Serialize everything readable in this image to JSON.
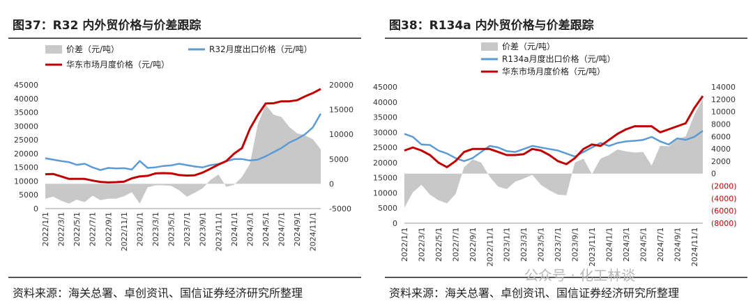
{
  "charts": [
    {
      "title": "图37：R32 内外贸价格与价差跟踪",
      "source": "资料来源：海关总署、卓创资讯、国信证券经济研究所整理"
    },
    {
      "title": "图38：R134a 内外贸价格与价差跟踪",
      "source": "资料来源：海关总署、卓创资讯、国信证券经济研究所整理"
    }
  ],
  "watermark": "公众号 · 化工林谈",
  "chart_data": [
    {
      "type": "line",
      "x": [
        "2022/1/1",
        "2022/2/1",
        "2022/3/1",
        "2022/4/1",
        "2022/5/1",
        "2022/6/1",
        "2022/7/1",
        "2022/8/1",
        "2022/9/1",
        "2022/10/1",
        "2022/11/1",
        "2022/12/1",
        "2023/1/1",
        "2023/2/1",
        "2023/3/1",
        "2023/4/1",
        "2023/5/1",
        "2023/6/1",
        "2023/7/1",
        "2023/8/1",
        "2023/9/1",
        "2023/10/1",
        "2023/11/1",
        "2023/12/1",
        "2024/1/1",
        "2024/2/1",
        "2024/3/1",
        "2024/4/1",
        "2024/5/1",
        "2024/6/1",
        "2024/7/1",
        "2024/8/1",
        "2024/9/1",
        "2024/10/1",
        "2024/11/1",
        "2024/12/1"
      ],
      "xticks": [
        "2022/1/1",
        "2022/3/1",
        "2022/5/1",
        "2022/7/1",
        "2022/9/1",
        "2022/11/1",
        "2023/1/1",
        "2023/3/1",
        "2023/5/1",
        "2023/7/1",
        "2023/9/1",
        "2023/11/1",
        "2024/1/1",
        "2024/3/1",
        "2024/5/1",
        "2024/7/1",
        "2024/9/1",
        "2024/11/1"
      ],
      "ylim_left": [
        0,
        45000
      ],
      "yticks_left": [
        0,
        5000,
        10000,
        15000,
        20000,
        25000,
        30000,
        35000,
        40000,
        45000
      ],
      "ylim_right": [
        -5000,
        20000
      ],
      "yticks_right": [
        -5000,
        0,
        5000,
        10000,
        15000,
        20000
      ],
      "legend": [
        "价差（元/吨）",
        "R32月度出口价格（元/吨）",
        "华东市场月度价格（元/吨）"
      ],
      "series": [
        {
          "name": "价差（元/吨）",
          "axis": "right",
          "kind": "area",
          "color": "#c8c8c8",
          "values": [
            -3000,
            -2600,
            -3400,
            -4000,
            -3200,
            -3700,
            -2400,
            -3300,
            -3000,
            -3000,
            -2500,
            -1700,
            -4000,
            -700,
            -300,
            -300,
            -400,
            -1300,
            -2600,
            -1800,
            -900,
            800,
            1900,
            -600,
            -200,
            1400,
            4000,
            12000,
            16000,
            14000,
            13500,
            11500,
            10200,
            9800,
            9000,
            7000
          ]
        },
        {
          "name": "R32月度出口价格（元/吨）",
          "axis": "left",
          "kind": "line",
          "color": "#5b9bd5",
          "values": [
            18300,
            17800,
            17300,
            16900,
            15900,
            16300,
            15000,
            14000,
            14800,
            14600,
            14700,
            14200,
            17300,
            14800,
            15000,
            15500,
            15700,
            16300,
            15800,
            15300,
            15000,
            15800,
            16200,
            17200,
            18000,
            18000,
            17500,
            17800,
            19000,
            20500,
            22000,
            24000,
            25300,
            27000,
            29500,
            34500
          ]
        },
        {
          "name": "华东市场月度价格（元/吨）",
          "axis": "left",
          "kind": "line",
          "color": "#c00000",
          "values": [
            12500,
            12600,
            11700,
            10800,
            10800,
            10800,
            10200,
            9700,
            9500,
            9600,
            9800,
            11000,
            11700,
            11900,
            12800,
            12900,
            12800,
            12200,
            12000,
            12100,
            13100,
            14500,
            16000,
            17300,
            20000,
            22000,
            29000,
            34000,
            38200,
            38300,
            39000,
            39000,
            39400,
            40800,
            42000,
            43500
          ]
        }
      ]
    },
    {
      "type": "line",
      "x": [
        "2022/1/1",
        "2022/2/1",
        "2022/3/1",
        "2022/4/1",
        "2022/5/1",
        "2022/6/1",
        "2022/7/1",
        "2022/8/1",
        "2022/9/1",
        "2022/10/1",
        "2022/11/1",
        "2022/12/1",
        "2023/1/1",
        "2023/2/1",
        "2023/3/1",
        "2023/4/1",
        "2023/5/1",
        "2023/6/1",
        "2023/7/1",
        "2023/8/1",
        "2023/9/1",
        "2023/10/1",
        "2023/11/1",
        "2023/12/1",
        "2024/1/1",
        "2024/2/1",
        "2024/3/1",
        "2024/4/1",
        "2024/5/1",
        "2024/6/1",
        "2024/7/1",
        "2024/8/1",
        "2024/9/1",
        "2024/10/1",
        "2024/11/1",
        "2024/12/1"
      ],
      "xticks": [
        "2022/1/1",
        "2022/3/1",
        "2022/5/1",
        "2022/7/1",
        "2022/9/1",
        "2022/11/1",
        "2023/1/1",
        "2023/3/1",
        "2023/5/1",
        "2023/7/1",
        "2023/9/1",
        "2023/11/1",
        "2024/1/1",
        "2024/3/1",
        "2024/5/1",
        "2024/7/1",
        "2024/9/1",
        "2024/11/1"
      ],
      "ylim_left": [
        0,
        45000
      ],
      "yticks_left": [
        0,
        5000,
        10000,
        15000,
        20000,
        25000,
        30000,
        35000,
        40000,
        45000
      ],
      "ylim_right": [
        -8000,
        14000
      ],
      "yticks_right": [
        -8000,
        -6000,
        -4000,
        -2000,
        0,
        2000,
        4000,
        6000,
        8000,
        10000,
        12000,
        14000
      ],
      "yticklabels_right": [
        "(8000)",
        "(6000)",
        "(4000)",
        "(2000)",
        "0",
        "2000",
        "4000",
        "6000",
        "8000",
        "10000",
        "12000",
        "14000"
      ],
      "legend": [
        "价差（元/吨）",
        "R134a月度出口价格（元/吨）",
        "华东市场月度价格（元/吨）"
      ],
      "series": [
        {
          "name": "价差（元/吨）",
          "axis": "right",
          "kind": "area",
          "color": "#c8c8c8",
          "values": [
            -5500,
            -3000,
            -1800,
            -3400,
            -4300,
            -4800,
            -3300,
            1000,
            2300,
            1800,
            -500,
            -2100,
            -2500,
            -1300,
            -800,
            -200,
            -1800,
            -2700,
            -3400,
            -3500,
            1800,
            2400,
            -100,
            2400,
            3000,
            3900,
            3600,
            3400,
            3500,
            1300,
            4500,
            4400,
            5600,
            6000,
            9500,
            12000
          ]
        },
        {
          "name": "R134a月度出口价格（元/吨）",
          "axis": "left",
          "kind": "line",
          "color": "#5b9bd5",
          "values": [
            29500,
            28500,
            26000,
            25800,
            24000,
            23000,
            21500,
            20500,
            21500,
            23500,
            25500,
            25000,
            23800,
            23500,
            24500,
            25500,
            25000,
            24500,
            24000,
            23000,
            22000,
            23500,
            25000,
            26500,
            25500,
            26500,
            27000,
            27200,
            27500,
            28500,
            27000,
            26000,
            28000,
            27500,
            28500,
            30500
          ]
        },
        {
          "name": "华东市场月度价格（元/吨）",
          "axis": "left",
          "kind": "line",
          "color": "#c00000",
          "values": [
            24000,
            25000,
            24000,
            22500,
            20000,
            18500,
            20500,
            23500,
            24500,
            24500,
            24500,
            23500,
            22500,
            22500,
            22800,
            24500,
            24000,
            22500,
            20500,
            19500,
            21500,
            24500,
            26000,
            25500,
            27500,
            29500,
            31000,
            32000,
            32000,
            32000,
            30000,
            31000,
            32000,
            33000,
            38000,
            42000
          ]
        }
      ]
    }
  ]
}
